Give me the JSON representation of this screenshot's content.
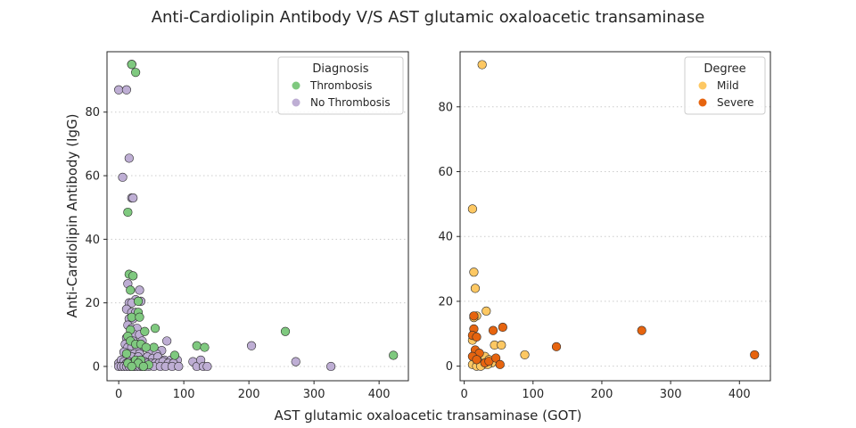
{
  "figure": {
    "title": "Anti-Cardiolipin Antibody V/S AST glutamic oxaloacetic transaminase",
    "xlabel": "AST glutamic oxaloacetic transaminase (GOT)",
    "ylabel": "Anti-Cardiolipin Antibody (IgG)"
  },
  "chart_data": [
    {
      "type": "scatter",
      "xlim": [
        -18,
        445
      ],
      "ylim": [
        -4.5,
        99
      ],
      "xticks": [
        0,
        100,
        200,
        300,
        400
      ],
      "yticks": [
        0,
        20,
        40,
        60,
        80
      ],
      "grid": "y dotted",
      "legend": {
        "title": "Diagnosis",
        "placement": "top-right"
      },
      "series": [
        {
          "name": "No Thrombosis",
          "color": "#beaed4",
          "points": [
            [
              0,
              87
            ],
            [
              12,
              87
            ],
            [
              6,
              59.5
            ],
            [
              20,
              53
            ],
            [
              22,
              53
            ],
            [
              16,
              65.5
            ],
            [
              20,
              95
            ],
            [
              14,
              26
            ],
            [
              32,
              24
            ],
            [
              26,
              21
            ],
            [
              16,
              20
            ],
            [
              20,
              20
            ],
            [
              34,
              20.5
            ],
            [
              12,
              18
            ],
            [
              20,
              17
            ],
            [
              26,
              17
            ],
            [
              16,
              15
            ],
            [
              22,
              15
            ],
            [
              14,
              13
            ],
            [
              20,
              12
            ],
            [
              28,
              12
            ],
            [
              18,
              10
            ],
            [
              24,
              10
            ],
            [
              32,
              10
            ],
            [
              12,
              9
            ],
            [
              16,
              8
            ],
            [
              22,
              8
            ],
            [
              36,
              8
            ],
            [
              74,
              8
            ],
            [
              10,
              7
            ],
            [
              14,
              6
            ],
            [
              20,
              6
            ],
            [
              28,
              6
            ],
            [
              40,
              6
            ],
            [
              48,
              5
            ],
            [
              66,
              5
            ],
            [
              8,
              4.5
            ],
            [
              16,
              4
            ],
            [
              24,
              4
            ],
            [
              32,
              4
            ],
            [
              58,
              4
            ],
            [
              90,
              2
            ],
            [
              12,
              3
            ],
            [
              20,
              3
            ],
            [
              30,
              3
            ],
            [
              44,
              3
            ],
            [
              52,
              2.5
            ],
            [
              60,
              3
            ],
            [
              70,
              2
            ],
            [
              80,
              2
            ],
            [
              0,
              1
            ],
            [
              4,
              2
            ],
            [
              8,
              1.5
            ],
            [
              12,
              1
            ],
            [
              16,
              1.5
            ],
            [
              20,
              1
            ],
            [
              24,
              1.5
            ],
            [
              28,
              1
            ],
            [
              32,
              1.5
            ],
            [
              36,
              1
            ],
            [
              40,
              1.5
            ],
            [
              44,
              1
            ],
            [
              50,
              1
            ],
            [
              56,
              1
            ],
            [
              62,
              1
            ],
            [
              68,
              1.5
            ],
            [
              76,
              1
            ],
            [
              84,
              1
            ],
            [
              0,
              0
            ],
            [
              4,
              0
            ],
            [
              8,
              0
            ],
            [
              12,
              0
            ],
            [
              16,
              0
            ],
            [
              20,
              0
            ],
            [
              24,
              0
            ],
            [
              28,
              0
            ],
            [
              32,
              0
            ],
            [
              36,
              0
            ],
            [
              40,
              0
            ],
            [
              46,
              0
            ],
            [
              54,
              0
            ],
            [
              64,
              0
            ],
            [
              72,
              0
            ],
            [
              82,
              0
            ],
            [
              92,
              0
            ],
            [
              114,
              1.5
            ],
            [
              120,
              0
            ],
            [
              126,
              2
            ],
            [
              130,
              0
            ],
            [
              136,
              0
            ],
            [
              204,
              6.5
            ],
            [
              272,
              1.5
            ],
            [
              326,
              0
            ]
          ]
        },
        {
          "name": "Thrombosis",
          "color": "#7fc97f",
          "points": [
            [
              20,
              95
            ],
            [
              26,
              92.5
            ],
            [
              14,
              48.5
            ],
            [
              16,
              29
            ],
            [
              22,
              28.5
            ],
            [
              18,
              24
            ],
            [
              30,
              20.5
            ],
            [
              30,
              17
            ],
            [
              20,
              15.5
            ],
            [
              32,
              15.5
            ],
            [
              56,
              12
            ],
            [
              18,
              11.5
            ],
            [
              40,
              11
            ],
            [
              14,
              9.5
            ],
            [
              18,
              8
            ],
            [
              26,
              7
            ],
            [
              34,
              7
            ],
            [
              54,
              6
            ],
            [
              42,
              6
            ],
            [
              120,
              6.5
            ],
            [
              132,
              6
            ],
            [
              256,
              11
            ],
            [
              422,
              3.5
            ],
            [
              12,
              4
            ],
            [
              26,
              2
            ],
            [
              34,
              2
            ],
            [
              86,
              3.5
            ],
            [
              14,
              1
            ],
            [
              30,
              1
            ],
            [
              46,
              0.5
            ],
            [
              20,
              0
            ],
            [
              38,
              0
            ]
          ]
        }
      ]
    },
    {
      "type": "scatter",
      "xlim": [
        -6,
        445
      ],
      "ylim": [
        -4.5,
        97
      ],
      "xticks": [
        0,
        100,
        200,
        300,
        400
      ],
      "yticks": [
        0,
        20,
        40,
        60,
        80
      ],
      "grid": "y dotted",
      "legend": {
        "title": "Degree",
        "placement": "top-right"
      },
      "series": [
        {
          "name": "Mild",
          "color": "#fdc863",
          "points": [
            [
              26,
              93
            ],
            [
              12,
              48.5
            ],
            [
              14,
              29
            ],
            [
              16,
              24
            ],
            [
              32,
              17
            ],
            [
              18,
              15.5
            ],
            [
              14,
              15
            ],
            [
              12,
              8
            ],
            [
              44,
              6.5
            ],
            [
              54,
              6.5
            ],
            [
              88,
              3.5
            ],
            [
              20,
              3
            ],
            [
              26,
              2
            ],
            [
              30,
              3
            ],
            [
              36,
              2
            ],
            [
              40,
              1
            ],
            [
              16,
              1.5
            ],
            [
              22,
              1
            ],
            [
              28,
              0.5
            ],
            [
              34,
              0.5
            ],
            [
              12,
              0.5
            ],
            [
              18,
              0
            ],
            [
              24,
              0
            ]
          ]
        },
        {
          "name": "Severe",
          "color": "#e6640f",
          "points": [
            [
              14,
              15.5
            ],
            [
              56,
              12
            ],
            [
              14,
              11.5
            ],
            [
              42,
              11
            ],
            [
              12,
              9.5
            ],
            [
              18,
              9
            ],
            [
              16,
              5
            ],
            [
              22,
              4
            ],
            [
              12,
              3
            ],
            [
              18,
              2
            ],
            [
              30,
              1
            ],
            [
              36,
              1.5
            ],
            [
              46,
              2.5
            ],
            [
              52,
              0.5
            ],
            [
              134,
              6
            ],
            [
              258,
              11
            ],
            [
              422,
              3.5
            ]
          ]
        }
      ]
    }
  ]
}
